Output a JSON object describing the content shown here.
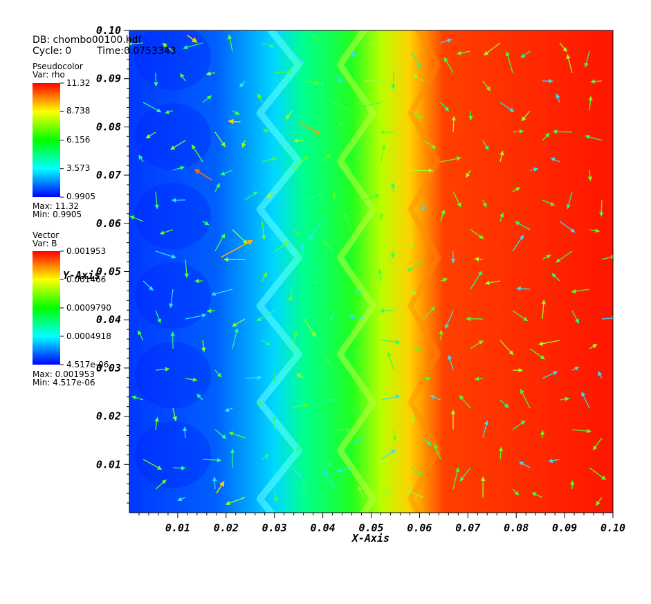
{
  "header": {
    "db_label": "DB: chombo00100.hdf",
    "cycle_label": "Cycle: 0",
    "time_label": "Time:0.0753343"
  },
  "pseudocolor_legend": {
    "title": "Pseudocolor",
    "var": "Var: rho",
    "ticks": [
      "11.32",
      "8.738",
      "6.156",
      "3.573",
      "0.9905"
    ],
    "max_label": "Max:  11.32",
    "min_label": "Min:  0.9905"
  },
  "vector_legend": {
    "title": "Vector",
    "var": "Var: B",
    "ticks": [
      "0.001953",
      "0.001466",
      "0.0009790",
      "0.0004918",
      "4.517e-06"
    ],
    "max_label": "Max:  0.001953",
    "min_label": "Min:  4.517e-06"
  },
  "colormap": [
    "#0000ff",
    "#00ffff",
    "#00ff00",
    "#ffff00",
    "#ff0000"
  ],
  "chart_data": {
    "type": "heatmap",
    "xlabel": "X-Axis",
    "ylabel": "Y-Axis",
    "xlim": [
      0,
      0.1
    ],
    "ylim": [
      0,
      0.1
    ],
    "x_ticks": [
      "0.01",
      "0.02",
      "0.03",
      "0.04",
      "0.05",
      "0.06",
      "0.07",
      "0.08",
      "0.09",
      "0.10"
    ],
    "y_ticks": [
      "0.01",
      "0.02",
      "0.03",
      "0.04",
      "0.05",
      "0.06",
      "0.07",
      "0.08",
      "0.09",
      "0.10"
    ],
    "field": {
      "name": "rho",
      "min": 0.9905,
      "max": 11.32,
      "x_profile": [
        [
          0.0,
          0.9905
        ],
        [
          0.02,
          1.6
        ],
        [
          0.03,
          3.5
        ],
        [
          0.035,
          4.8
        ],
        [
          0.045,
          6.2
        ],
        [
          0.052,
          7.5
        ],
        [
          0.058,
          9.6
        ],
        [
          0.065,
          10.8
        ],
        [
          0.1,
          11.32
        ]
      ]
    },
    "vector_field": {
      "name": "B",
      "min": 4.517e-06,
      "max": 0.001953
    }
  }
}
